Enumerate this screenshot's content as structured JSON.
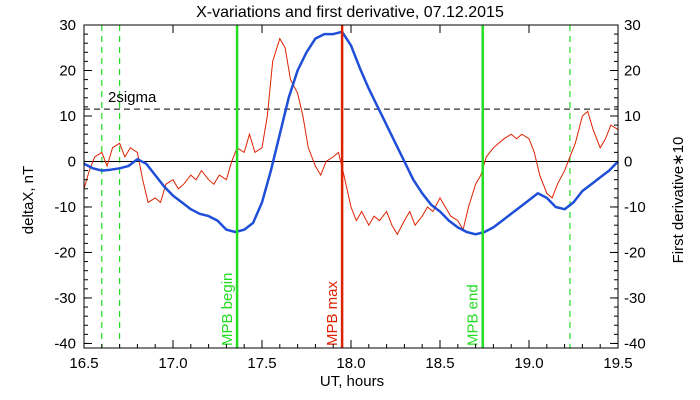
{
  "chart_data": {
    "type": "line",
    "title": "X-variations and first derivative, 07.12.2015",
    "xlabel": "UT, hours",
    "ylabel_left": "deltaX, nT",
    "ylabel_right": "First derivative∗10",
    "xlim": [
      16.5,
      19.5
    ],
    "ylim_left": [
      -41,
      30
    ],
    "ylim_right": [
      -41,
      30
    ],
    "x_ticks": [
      "16.5",
      "17.0",
      "17.5",
      "18.0",
      "18.5",
      "19.0",
      "19.5"
    ],
    "y_ticks_left": [
      "30",
      "20",
      "10",
      "0",
      "-10",
      "-20",
      "-30",
      "-40"
    ],
    "y_ticks_right": [
      "30",
      "20",
      "10",
      "0",
      "-10",
      "-20",
      "-30",
      "-40"
    ],
    "colors": {
      "deltaX": "#1f4fd8",
      "derivative": "#dd2200",
      "mpb": "#22dd22",
      "mpb_max": "#dd2200",
      "axis": "#000000"
    },
    "sigma": {
      "label": "2sigma",
      "value": 11.5
    },
    "zero_line": 0,
    "vertical_markers": [
      {
        "label": "MPB begin",
        "x": 17.36,
        "color": "#22dd22"
      },
      {
        "label": "MPB max",
        "x": 17.95,
        "color": "#dd2200"
      },
      {
        "label": "MPB end",
        "x": 18.74,
        "color": "#22dd22"
      }
    ],
    "dashed_verticals": [
      16.6,
      16.7,
      19.23
    ],
    "series": [
      {
        "name": "deltaX, nT",
        "color": "#1f4fd8",
        "x": [
          16.5,
          16.55,
          16.6,
          16.65,
          16.7,
          16.75,
          16.8,
          16.85,
          16.9,
          16.95,
          17.0,
          17.05,
          17.1,
          17.15,
          17.2,
          17.25,
          17.3,
          17.35,
          17.4,
          17.45,
          17.5,
          17.55,
          17.6,
          17.65,
          17.7,
          17.75,
          17.8,
          17.85,
          17.9,
          17.95,
          18.0,
          18.05,
          18.1,
          18.15,
          18.2,
          18.25,
          18.3,
          18.35,
          18.4,
          18.45,
          18.5,
          18.55,
          18.6,
          18.65,
          18.7,
          18.75,
          18.8,
          18.85,
          18.9,
          18.95,
          19.0,
          19.05,
          19.1,
          19.15,
          19.2,
          19.25,
          19.3,
          19.35,
          19.4,
          19.45,
          19.5
        ],
        "values": [
          -0.5,
          -1.5,
          -2,
          -1.8,
          -1.5,
          -1,
          0.5,
          -0.5,
          -3,
          -5.5,
          -7.5,
          -9,
          -10.5,
          -11.5,
          -12,
          -13,
          -15,
          -15.5,
          -15,
          -13.5,
          -9,
          -2,
          6,
          14,
          20,
          24,
          27,
          28,
          28,
          28.5,
          25.5,
          20.5,
          16,
          12,
          8,
          4,
          0,
          -4,
          -7,
          -9.5,
          -11,
          -13,
          -14.5,
          -15.5,
          -16,
          -15.5,
          -14.5,
          -13,
          -11.5,
          -10,
          -8.5,
          -7,
          -8,
          -10,
          -10.5,
          -9,
          -6.5,
          -5,
          -3.5,
          -2,
          0
        ]
      },
      {
        "name": "First derivative∗10",
        "color": "#dd2200",
        "x": [
          16.5,
          16.53,
          16.56,
          16.6,
          16.63,
          16.66,
          16.7,
          16.73,
          16.76,
          16.8,
          16.83,
          16.86,
          16.9,
          16.93,
          16.96,
          17.0,
          17.03,
          17.06,
          17.1,
          17.13,
          17.16,
          17.2,
          17.23,
          17.26,
          17.3,
          17.33,
          17.36,
          17.4,
          17.43,
          17.46,
          17.5,
          17.53,
          17.56,
          17.6,
          17.63,
          17.66,
          17.7,
          17.73,
          17.76,
          17.8,
          17.83,
          17.86,
          17.9,
          17.93,
          17.96,
          18.0,
          18.03,
          18.06,
          18.1,
          18.13,
          18.16,
          18.2,
          18.23,
          18.26,
          18.3,
          18.33,
          18.36,
          18.4,
          18.43,
          18.46,
          18.5,
          18.53,
          18.56,
          18.6,
          18.63,
          18.66,
          18.7,
          18.73,
          18.76,
          18.8,
          18.83,
          18.86,
          18.9,
          18.93,
          18.96,
          19.0,
          19.03,
          19.06,
          19.1,
          19.13,
          19.16,
          19.2,
          19.23,
          19.26,
          19.3,
          19.33,
          19.36,
          19.4,
          19.43,
          19.46,
          19.5
        ],
        "values": [
          -6,
          -2,
          1,
          2,
          -1,
          3,
          4,
          1,
          3,
          2,
          -4,
          -9,
          -8,
          -9,
          -5,
          -4,
          -6,
          -5,
          -3,
          -4,
          -2,
          -4,
          -5,
          -3,
          -4,
          0,
          3,
          2,
          6,
          2,
          3,
          10,
          22,
          27,
          25,
          18,
          15,
          10,
          3,
          -1,
          -3,
          0,
          1,
          2,
          -3,
          -10,
          -13,
          -11,
          -14,
          -12,
          -13,
          -11,
          -14,
          -16,
          -13,
          -11,
          -14,
          -12,
          -10,
          -11,
          -8,
          -10,
          -12,
          -13,
          -15,
          -10,
          -5,
          -3,
          1,
          3,
          4,
          5,
          6,
          5,
          6,
          5,
          2,
          -3,
          -7,
          -8,
          -5,
          -2,
          1,
          4,
          10,
          11,
          7,
          3,
          5,
          8,
          7
        ]
      }
    ],
    "labels": {
      "sigma": "2sigma",
      "mpb_begin": "MPB begin",
      "mpb_max": "MPB max",
      "mpb_end": "MPB end"
    }
  }
}
